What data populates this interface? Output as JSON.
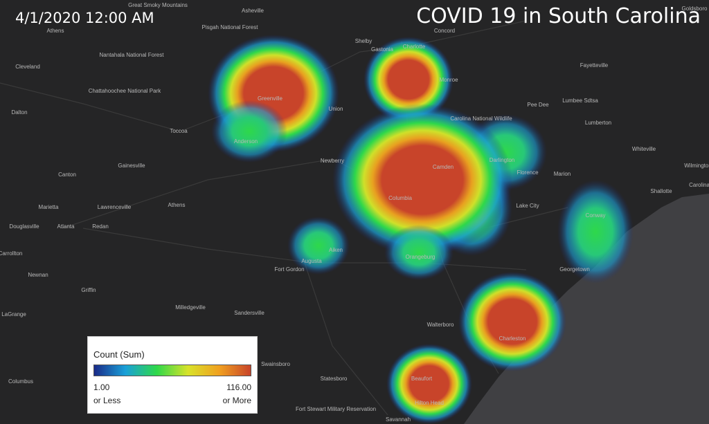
{
  "header": {
    "timestamp": "4/1/2020 12:00 AM",
    "title": "COVID 19 in South Carolina"
  },
  "legend": {
    "title": "Count (Sum)",
    "min_label": "1.00",
    "min_note": "or Less",
    "max_label": "116.00",
    "max_note": "or More"
  },
  "places": [
    "Great Smoky Mountains",
    "Asheville",
    "Pisgah National Forest",
    "Nantahala National Forest",
    "Athens",
    "Cleveland",
    "Chattahoochee National Park",
    "Dalton",
    "Toccoa",
    "Greenville",
    "Anderson",
    "Union",
    "Shelby",
    "Gastonia",
    "Charlotte",
    "Concord",
    "Monroe",
    "Carolina National Wildlife",
    "Pee Dee",
    "Fayetteville",
    "Lumbee Sdtsa",
    "Lumberton",
    "Newberry",
    "Camden",
    "Columbia",
    "Darlington",
    "Florence",
    "Marion",
    "Whiteville",
    "Lake City",
    "Conway",
    "Shallotte",
    "Gainesville",
    "Canton",
    "Athens",
    "Lawrenceville",
    "Marietta",
    "Atlanta",
    "Redan",
    "Douglasville",
    "Carrollton",
    "Newnan",
    "Griffin",
    "Aiken",
    "Augusta",
    "Orangeburg",
    "Fort Gordon",
    "Georgetown",
    "Milledgeville",
    "Sandersville",
    "LaGrange",
    "Walterboro",
    "Charleston",
    "Swainsboro",
    "Statesboro",
    "Columbus",
    "Beaufort",
    "Hilton Head",
    "Fort Stewart Military Reservation",
    "Savannah",
    "Goldsboro",
    "Wilmington",
    "Carolina"
  ]
}
